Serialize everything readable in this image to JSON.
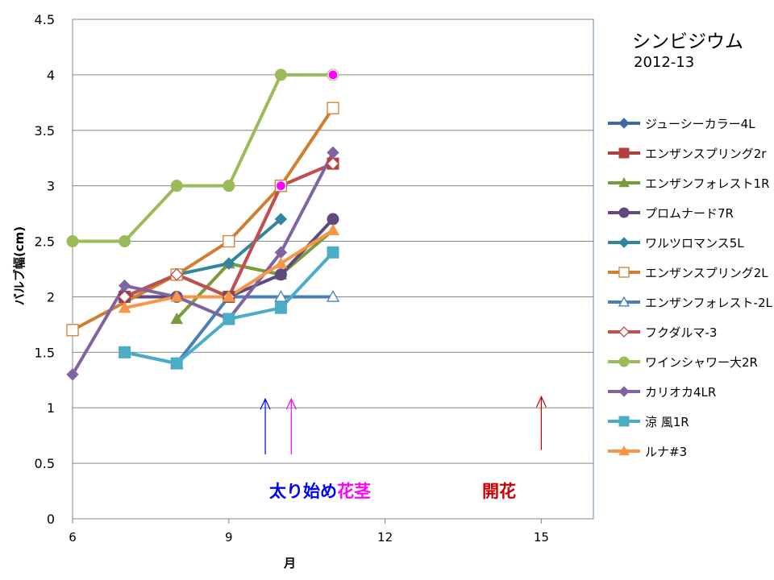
{
  "chart_data": {
    "type": "line",
    "title": "シンビジウム",
    "subtitle": "2012-13",
    "xlabel": "月",
    "ylabel": "バルブ幅(cm)",
    "xlim": [
      6,
      16
    ],
    "ylim": [
      0,
      4.5
    ],
    "x_ticks": [
      "6",
      "9",
      "12",
      "15"
    ],
    "y_ticks": [
      "0",
      "0.5",
      "1",
      "1.5",
      "2",
      "2.5",
      "3",
      "3.5",
      "4",
      "4.5"
    ],
    "grid": "horizontal",
    "legend_position": "right",
    "series": [
      {
        "name": "ジューシーカラー4L",
        "color": "#3d6aa6",
        "marker": "diamond",
        "points": []
      },
      {
        "name": "エンザンスプリング2r",
        "color": "#b0403d",
        "marker": "square",
        "points": [
          [
            7,
            2.0
          ],
          [
            8,
            2.2
          ],
          [
            9,
            2.0
          ],
          [
            10,
            3.0
          ],
          [
            11,
            3.2
          ]
        ]
      },
      {
        "name": "エンザンフォレスト1R",
        "color": "#7a9b3b",
        "marker": "triangle",
        "points": [
          [
            8,
            1.8
          ],
          [
            9,
            2.3
          ],
          [
            10,
            2.2
          ],
          [
            11,
            2.6
          ]
        ]
      },
      {
        "name": "プロムナード7R",
        "color": "#60497b",
        "marker": "circle",
        "points": [
          [
            7,
            2.0
          ],
          [
            8,
            2.0
          ],
          [
            9,
            2.0
          ],
          [
            10,
            2.2
          ],
          [
            11,
            2.7
          ]
        ]
      },
      {
        "name": "ワルツロマンス5L",
        "color": "#31859c",
        "marker": "diamond",
        "points": [
          [
            7,
            2.0
          ],
          [
            8,
            2.2
          ],
          [
            9,
            2.3
          ],
          [
            10,
            2.7
          ]
        ]
      },
      {
        "name": "エンザンスプリング2L",
        "color": "#d07e31",
        "marker": "square-open",
        "points": [
          [
            6,
            1.7
          ],
          [
            8,
            2.2
          ],
          [
            9,
            2.5
          ],
          [
            10,
            3.0
          ],
          [
            11,
            3.7
          ]
        ]
      },
      {
        "name": "エンザンフォレスト-2L",
        "color": "#4a7ebb",
        "marker": "triangle-open",
        "points": [
          [
            7,
            1.5
          ],
          [
            8,
            1.4
          ],
          [
            9,
            2.0
          ],
          [
            10,
            2.0
          ],
          [
            11,
            2.0
          ]
        ]
      },
      {
        "name": "フクダルマ-3",
        "color": "#c0504d",
        "marker": "diamond-open",
        "points": [
          [
            7,
            2.0
          ],
          [
            8,
            2.2
          ],
          [
            9,
            2.0
          ],
          [
            10,
            3.0
          ],
          [
            11,
            3.2
          ]
        ]
      },
      {
        "name": "ワインシャワー大2R",
        "color": "#9bbb59",
        "marker": "circle",
        "points": [
          [
            6,
            2.5
          ],
          [
            7,
            2.5
          ],
          [
            8,
            3.0
          ],
          [
            9,
            3.0
          ],
          [
            10,
            4.0
          ],
          [
            11,
            4.0
          ]
        ]
      },
      {
        "name": "カリオカ4LR",
        "color": "#8064a2",
        "marker": "diamond",
        "points": [
          [
            6,
            1.3
          ],
          [
            7,
            2.1
          ],
          [
            8,
            2.0
          ],
          [
            9,
            1.8
          ],
          [
            10,
            2.4
          ],
          [
            11,
            3.3
          ]
        ]
      },
      {
        "name": "涼 風1R",
        "color": "#4bacc6",
        "marker": "square",
        "points": [
          [
            7,
            1.5
          ],
          [
            8,
            1.4
          ],
          [
            9,
            1.8
          ],
          [
            10,
            1.9
          ],
          [
            11,
            2.4
          ]
        ]
      },
      {
        "name": "ルナ#3",
        "color": "#f79646",
        "marker": "triangle",
        "points": [
          [
            7,
            1.9
          ],
          [
            8,
            2.0
          ],
          [
            9,
            2.0
          ],
          [
            10,
            2.3
          ],
          [
            11,
            2.6
          ]
        ]
      }
    ],
    "highlight_points": [
      {
        "color": "#ff00ff",
        "points": [
          [
            10,
            3.0
          ],
          [
            11,
            4.0
          ]
        ]
      }
    ],
    "annotations": [
      {
        "text": "太り始め",
        "color": "#0000ff",
        "arrow_x": 9.7,
        "arrow_y": [
          0.58,
          1.08
        ]
      },
      {
        "text": "花茎",
        "color": "#ff00ff",
        "arrow_x": 10.2,
        "arrow_y": [
          0.58,
          1.08
        ]
      },
      {
        "text": "開花",
        "color": "#cc0000",
        "arrow_x": 15.0,
        "arrow_y": [
          0.62,
          1.1
        ]
      }
    ]
  }
}
